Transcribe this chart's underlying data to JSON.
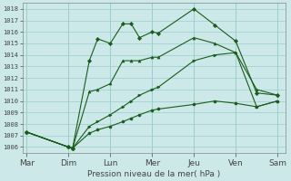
{
  "background_color": "#cce8e8",
  "grid_color": "#99cccc",
  "line_color": "#1a5c1a",
  "ylabel": "Pression niveau de la mer( hPa )",
  "ylim": [
    1005.5,
    1018.5
  ],
  "yticks": [
    1006,
    1007,
    1008,
    1009,
    1010,
    1011,
    1012,
    1013,
    1014,
    1015,
    1016,
    1017,
    1018
  ],
  "xtick_labels": [
    "Mar",
    "Dim",
    "Lun",
    "Mer",
    "Jeu",
    "Ven",
    "Sam"
  ],
  "xlim": [
    -0.1,
    6.2
  ],
  "series": [
    {
      "x": [
        0.0,
        1.0,
        1.1,
        1.5,
        1.7,
        2.0,
        2.3,
        2.5,
        2.7,
        3.0,
        3.15,
        4.0,
        4.5,
        5.0,
        5.5,
        6.0
      ],
      "y": [
        1007.3,
        1006.0,
        1005.9,
        1013.5,
        1015.4,
        1015.0,
        1016.7,
        1016.7,
        1015.5,
        1016.0,
        1015.9,
        1018.0,
        1016.6,
        1015.2,
        1010.7,
        1010.5
      ],
      "marker": "D"
    },
    {
      "x": [
        0.0,
        1.0,
        1.1,
        1.5,
        1.7,
        2.0,
        2.3,
        2.5,
        2.7,
        3.0,
        3.15,
        4.0,
        4.5,
        5.0,
        5.5,
        6.0
      ],
      "y": [
        1007.3,
        1006.0,
        1005.9,
        1010.8,
        1011.0,
        1011.5,
        1013.5,
        1013.5,
        1013.5,
        1013.8,
        1013.8,
        1015.5,
        1015.0,
        1014.2,
        1011.0,
        1010.5
      ],
      "marker": "^"
    },
    {
      "x": [
        0.0,
        1.0,
        1.1,
        1.5,
        1.7,
        2.0,
        2.3,
        2.5,
        2.7,
        3.0,
        3.15,
        4.0,
        4.5,
        5.0,
        5.5,
        6.0
      ],
      "y": [
        1007.3,
        1006.0,
        1005.9,
        1007.8,
        1008.2,
        1008.8,
        1009.5,
        1010.0,
        1010.5,
        1011.0,
        1011.2,
        1013.5,
        1014.0,
        1014.2,
        1009.5,
        1010.0
      ],
      "marker": ">"
    },
    {
      "x": [
        0.0,
        1.0,
        1.1,
        1.5,
        1.7,
        2.0,
        2.3,
        2.5,
        2.7,
        3.0,
        3.15,
        4.0,
        4.5,
        5.0,
        5.5,
        6.0
      ],
      "y": [
        1007.3,
        1006.0,
        1005.9,
        1007.2,
        1007.5,
        1007.8,
        1008.2,
        1008.5,
        1008.8,
        1009.2,
        1009.3,
        1009.7,
        1010.0,
        1009.8,
        1009.5,
        1010.0
      ],
      "marker": "o"
    }
  ]
}
